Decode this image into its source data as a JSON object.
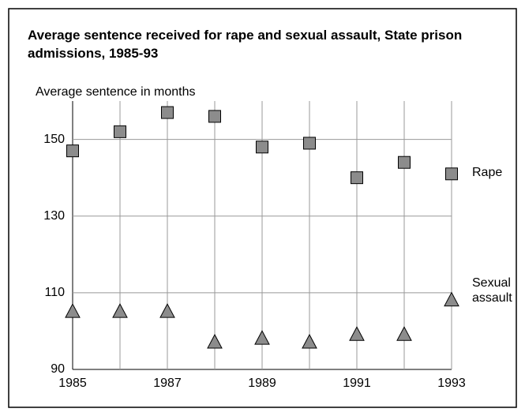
{
  "chart_data": {
    "type": "scatter",
    "title": "Average sentence received for rape and sexual assault, State prison admissions, 1985-93",
    "ylabel": "Average sentence in months",
    "categories": [
      1985,
      null,
      1987,
      null,
      1989,
      null,
      1991,
      null,
      1993
    ],
    "series": [
      {
        "name": "Rape",
        "color": "#8c8c8c",
        "marker": "square",
        "values": [
          147,
          152,
          157,
          156,
          148,
          149,
          140,
          144,
          141
        ]
      },
      {
        "name": "Sexual assault",
        "color": "#8c8c8c",
        "marker": "triangle",
        "values": [
          105,
          105,
          105,
          97,
          98,
          97,
          99,
          99,
          108
        ]
      }
    ],
    "ylim": [
      90,
      160
    ],
    "yticks": [
      90,
      110,
      130,
      150
    ],
    "grid": true
  }
}
